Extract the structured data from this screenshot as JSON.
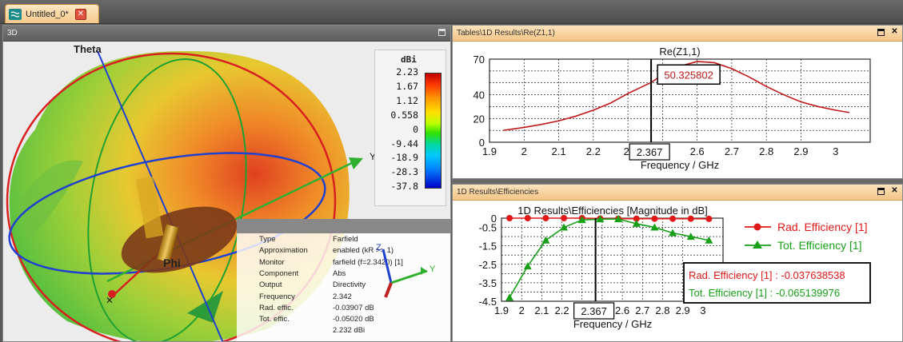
{
  "app": {
    "document_tab": "Untitled_0*",
    "panels": {
      "view3d": "3D",
      "re_panel": "Tables\\1D Results\\Re(Z1,1)",
      "eff_panel": "1D Results\\Efficiencies"
    }
  },
  "view3d": {
    "axis_labels": {
      "theta": "Theta",
      "phi": "Phi",
      "y_axis": "Y",
      "coord_x": "X",
      "coord_y": "Y",
      "coord_z": "Z"
    },
    "legend": {
      "unit": "dBi",
      "ticks": [
        "2.23",
        "1.67",
        "1.12",
        "0.558",
        "0",
        "-9.44",
        "-18.9",
        "-28.3",
        "-37.8"
      ]
    },
    "info": [
      {
        "key": "Type",
        "value": "Farfield"
      },
      {
        "key": "Approximation",
        "value": "enabled (kR >> 1)"
      },
      {
        "key": "Monitor",
        "value": "farfield (f=2.3420) [1]"
      },
      {
        "key": "Component",
        "value": "Abs"
      },
      {
        "key": "Output",
        "value": "Directivity"
      },
      {
        "key": "Frequency",
        "value": "2.342"
      },
      {
        "key": "Rad. effic.",
        "value": "-0.03907 dB"
      },
      {
        "key": "Tot. effic.",
        "value": "-0.05020 dB"
      },
      {
        "key": "",
        "value": "2.232 dBi"
      }
    ],
    "colors": {
      "hot": "#e02020",
      "warm": "#f0a020",
      "cool": "#40c020"
    }
  },
  "chart_data": [
    {
      "type": "line",
      "title": "Re(Z1,1)",
      "xlabel": "Frequency / GHz",
      "ylabel": "",
      "xlim": [
        1.9,
        3.0
      ],
      "ylim": [
        0,
        70
      ],
      "x_ticks": [
        "1.9",
        "2",
        "2.1",
        "2.2",
        "2.",
        "2.5",
        "2.6",
        "2.7",
        "2.8",
        "2.9",
        "3"
      ],
      "y_ticks": [
        "70",
        "40",
        "20",
        "0"
      ],
      "marker": {
        "x": "2.367",
        "label": "50.325802"
      },
      "grid": true,
      "series": [
        {
          "color": "#c01818",
          "x": [
            1.94,
            2.0,
            2.05,
            2.1,
            2.15,
            2.2,
            2.25,
            2.3,
            2.35,
            2.367,
            2.4,
            2.45,
            2.5,
            2.55,
            2.6,
            2.65,
            2.7,
            2.75,
            2.8,
            2.85,
            2.9,
            2.94
          ],
          "values": [
            10,
            12.5,
            15,
            18,
            22,
            27,
            33,
            41,
            48,
            50.3,
            57,
            64,
            68,
            67,
            62,
            55,
            47,
            40,
            34,
            30,
            27,
            25
          ]
        }
      ]
    },
    {
      "type": "line",
      "title": "1D Results\\Efficiencies [Magnitude in dB]",
      "xlabel": "Frequency / GHz",
      "ylabel": "",
      "xlim": [
        1.9,
        3.0
      ],
      "ylim": [
        -4.5,
        0
      ],
      "x_ticks": [
        "1.9",
        "2",
        "2.1",
        "2.2",
        "2.",
        "2.5",
        "2.6",
        "2.7",
        "2.8",
        "2.9",
        "3"
      ],
      "y_ticks": [
        "0",
        "-0.5",
        "-1.5",
        "-2.5",
        "-3.5",
        "-4.5"
      ],
      "marker": {
        "x": "2.367"
      },
      "grid": true,
      "legend_position": "right",
      "readout": [
        "Rad. Efficiency [1] : -0.037638538",
        "Tot. Efficiency [1] : -0.065139976"
      ],
      "series": [
        {
          "name": "Rad. Efficiency [1]",
          "color": "#e01818",
          "marker": "circle",
          "x": [
            1.94,
            2.03,
            2.12,
            2.21,
            2.3,
            2.39,
            2.48,
            2.57,
            2.66,
            2.75,
            2.84,
            2.93
          ],
          "values": [
            0,
            0,
            0,
            0,
            0,
            -0.02,
            -0.03,
            -0.03,
            -0.03,
            -0.03,
            -0.03,
            -0.04
          ]
        },
        {
          "name": "Tot. Efficiency [1]",
          "color": "#18a018",
          "marker": "triangle",
          "x": [
            1.94,
            2.03,
            2.12,
            2.21,
            2.3,
            2.39,
            2.48,
            2.57,
            2.66,
            2.75,
            2.84,
            2.93
          ],
          "values": [
            -4.3,
            -2.6,
            -1.2,
            -0.5,
            -0.1,
            -0.05,
            -0.05,
            -0.3,
            -0.5,
            -0.8,
            -1.0,
            -1.2
          ]
        }
      ]
    }
  ]
}
